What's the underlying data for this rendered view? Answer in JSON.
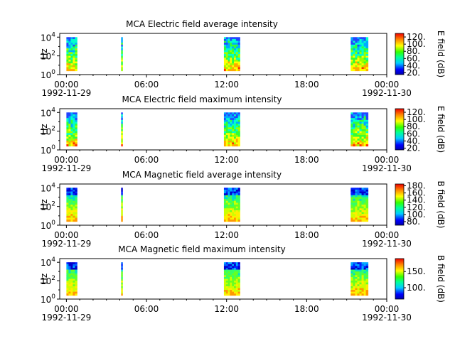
{
  "chart_data": [
    {
      "type": "heatmap",
      "title": "MCA  Electric field average intensity",
      "ylabel": "Hz",
      "y_scale": "log",
      "y_ticks": [
        {
          "base": "10",
          "exp": "0"
        },
        {
          "base": "10",
          "exp": "2"
        },
        {
          "base": "10",
          "exp": "4"
        }
      ],
      "x_ticks": [
        "00:00",
        "06:00",
        "12:00",
        "18:00",
        "00:00"
      ],
      "x_start_date": "1992-11-29",
      "x_end_date": "1992-11-30",
      "x_range_hours": [
        -0.5,
        24
      ],
      "y_range_exp": [
        0,
        4.4
      ],
      "colorbar": {
        "label": "E field (dB)",
        "ticks": [
          "20.",
          "40.",
          "60.",
          "80.",
          "100.",
          "120."
        ],
        "range": [
          15,
          130
        ]
      },
      "data_intervals": [
        {
          "start_h": 0.0,
          "end_h": 0.8,
          "kind": "electric"
        },
        {
          "start_h": 4.1,
          "end_h": 4.15,
          "kind": "electric"
        },
        {
          "start_h": 11.8,
          "end_h": 13.0,
          "kind": "electric"
        },
        {
          "start_h": 21.3,
          "end_h": 22.6,
          "kind": "electric"
        }
      ]
    },
    {
      "type": "heatmap",
      "title": "MCA  Electric field maximum intensity",
      "ylabel": "Hz",
      "y_scale": "log",
      "y_ticks": [
        {
          "base": "10",
          "exp": "0"
        },
        {
          "base": "10",
          "exp": "2"
        },
        {
          "base": "10",
          "exp": "4"
        }
      ],
      "x_ticks": [
        "00:00",
        "06:00",
        "12:00",
        "18:00",
        "00:00"
      ],
      "x_start_date": "1992-11-29",
      "x_end_date": "1992-11-30",
      "x_range_hours": [
        -0.5,
        24
      ],
      "y_range_exp": [
        0,
        4.4
      ],
      "colorbar": {
        "label": "E field (dB)",
        "ticks": [
          "20.",
          "40.",
          "60.",
          "80.",
          "100.",
          "120."
        ],
        "range": [
          15,
          130
        ]
      },
      "data_intervals": [
        {
          "start_h": 0.0,
          "end_h": 0.8,
          "kind": "electric"
        },
        {
          "start_h": 4.1,
          "end_h": 4.15,
          "kind": "electric"
        },
        {
          "start_h": 11.8,
          "end_h": 13.0,
          "kind": "electric"
        },
        {
          "start_h": 21.3,
          "end_h": 22.6,
          "kind": "electric"
        }
      ]
    },
    {
      "type": "heatmap",
      "title": "MCA  Magnetic field average intensity",
      "ylabel": "Hz",
      "y_scale": "log",
      "y_ticks": [
        {
          "base": "10",
          "exp": "0"
        },
        {
          "base": "10",
          "exp": "2"
        },
        {
          "base": "10",
          "exp": "4"
        }
      ],
      "x_ticks": [
        "00:00",
        "06:00",
        "12:00",
        "18:00",
        "00:00"
      ],
      "x_start_date": "1992-11-29",
      "x_end_date": "1992-11-30",
      "x_range_hours": [
        -0.5,
        24
      ],
      "y_range_exp": [
        0,
        4.4
      ],
      "colorbar": {
        "label": "B field (dB)",
        "ticks": [
          "80.",
          "100.",
          "120.",
          "140.",
          "160.",
          "180."
        ],
        "range": [
          70,
          185
        ]
      },
      "data_intervals": [
        {
          "start_h": 0.0,
          "end_h": 0.8,
          "kind": "magnetic"
        },
        {
          "start_h": 4.1,
          "end_h": 4.15,
          "kind": "magnetic"
        },
        {
          "start_h": 11.8,
          "end_h": 13.0,
          "kind": "magnetic"
        },
        {
          "start_h": 21.3,
          "end_h": 22.6,
          "kind": "magnetic"
        }
      ]
    },
    {
      "type": "heatmap",
      "title": "MCA  Magnetic field maximum intensity",
      "ylabel": "Hz",
      "y_scale": "log",
      "y_ticks": [
        {
          "base": "10",
          "exp": "0"
        },
        {
          "base": "10",
          "exp": "2"
        },
        {
          "base": "10",
          "exp": "4"
        }
      ],
      "x_ticks": [
        "00:00",
        "06:00",
        "12:00",
        "18:00",
        "00:00"
      ],
      "x_start_date": "1992-11-29",
      "x_end_date": "1992-11-30",
      "x_range_hours": [
        -0.5,
        24
      ],
      "y_range_exp": [
        0,
        4.4
      ],
      "colorbar": {
        "label": "B field (dB)",
        "ticks": [
          "100.",
          "150."
        ],
        "range": [
          65,
          190
        ]
      },
      "data_intervals": [
        {
          "start_h": 0.0,
          "end_h": 0.8,
          "kind": "magnetic"
        },
        {
          "start_h": 4.1,
          "end_h": 4.15,
          "kind": "magnetic"
        },
        {
          "start_h": 11.8,
          "end_h": 13.0,
          "kind": "magnetic"
        },
        {
          "start_h": 21.3,
          "end_h": 22.6,
          "kind": "magnetic"
        }
      ]
    }
  ]
}
